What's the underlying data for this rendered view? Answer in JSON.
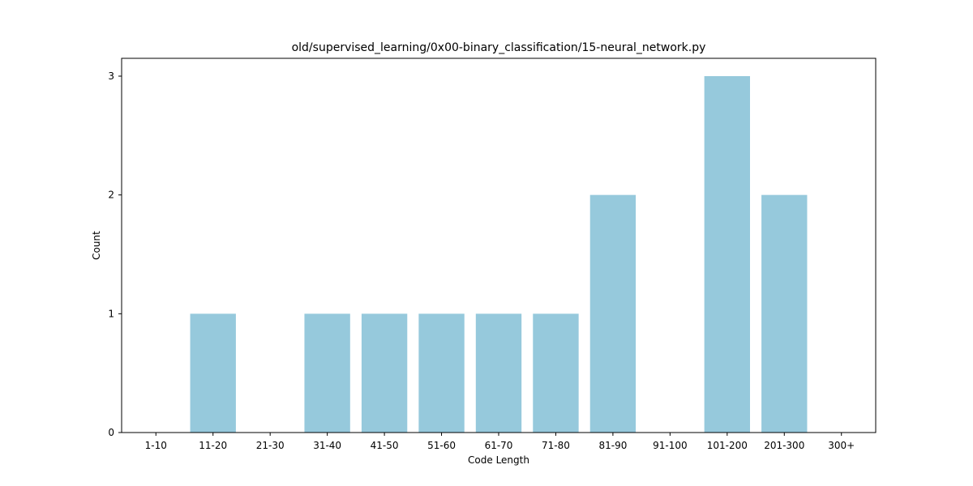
{
  "chart_data": {
    "type": "bar",
    "title": "old/supervised_learning/0x00-binary_classification/15-neural_network.py",
    "xlabel": "Code Length",
    "ylabel": "Count",
    "categories": [
      "1-10",
      "11-20",
      "21-30",
      "31-40",
      "41-50",
      "51-60",
      "61-70",
      "71-80",
      "81-90",
      "91-100",
      "101-200",
      "201-300",
      "300+"
    ],
    "values": [
      0,
      1,
      0,
      1,
      1,
      1,
      1,
      1,
      2,
      0,
      3,
      2,
      0
    ],
    "yticks": [
      0,
      1,
      2,
      3
    ],
    "ylim": [
      0,
      3.15
    ],
    "bar_color": "#96c9dc",
    "grid": false,
    "legend": "none"
  }
}
